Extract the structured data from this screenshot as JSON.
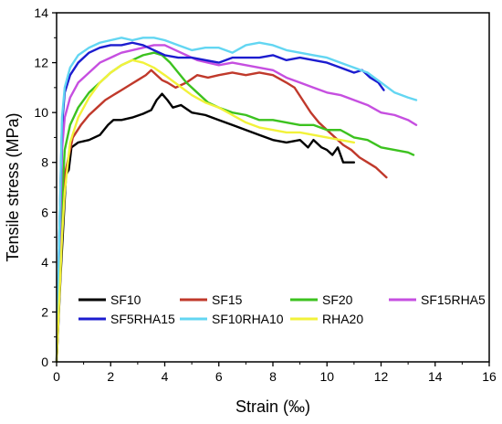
{
  "chart_data": {
    "type": "line",
    "xlabel": "Strain (‰)",
    "ylabel": "Tensile stress (MPa)",
    "xlim": [
      0,
      16
    ],
    "ylim": [
      0,
      14
    ],
    "xticks": [
      "0",
      "2",
      "4",
      "6",
      "8",
      "10",
      "12",
      "14",
      "16"
    ],
    "yticks": [
      "0",
      "2",
      "4",
      "6",
      "8",
      "10",
      "12",
      "14"
    ],
    "grid": false,
    "legend_position": "bottom-left",
    "series": [
      {
        "name": "SF10",
        "color": "#000000",
        "x": [
          0,
          0.15,
          0.3,
          0.35,
          0.45,
          0.55,
          0.8,
          1.2,
          1.6,
          1.9,
          2.1,
          2.4,
          2.8,
          3.2,
          3.5,
          3.7,
          3.9,
          4.1,
          4.3,
          4.6,
          5.0,
          5.5,
          6.0,
          6.5,
          7.0,
          7.5,
          8.0,
          8.5,
          9.0,
          9.3,
          9.5,
          9.8,
          10.0,
          10.2,
          10.4,
          10.6,
          10.8,
          11.0
        ],
        "y": [
          0,
          3.5,
          6.5,
          7.5,
          7.7,
          8.6,
          8.8,
          8.9,
          9.1,
          9.5,
          9.7,
          9.7,
          9.8,
          9.95,
          10.1,
          10.5,
          10.75,
          10.5,
          10.2,
          10.3,
          10.0,
          9.9,
          9.7,
          9.5,
          9.3,
          9.1,
          8.9,
          8.8,
          8.9,
          8.6,
          8.9,
          8.6,
          8.5,
          8.3,
          8.6,
          8.0,
          8.0,
          8.0
        ]
      },
      {
        "name": "SF15",
        "color": "#c0392b",
        "x": [
          0,
          0.15,
          0.3,
          0.4,
          0.6,
          0.9,
          1.2,
          1.5,
          1.8,
          2.1,
          2.4,
          2.7,
          3.0,
          3.3,
          3.5,
          3.7,
          3.9,
          4.1,
          4.4,
          4.8,
          5.2,
          5.6,
          6.0,
          6.5,
          7.0,
          7.5,
          8.0,
          8.5,
          8.8,
          9.1,
          9.4,
          9.7,
          10.0,
          10.3,
          10.6,
          10.9,
          11.2,
          11.5,
          11.8,
          12.0,
          12.2
        ],
        "y": [
          0,
          4.0,
          7.5,
          8.0,
          9.0,
          9.5,
          9.9,
          10.2,
          10.5,
          10.7,
          10.9,
          11.1,
          11.3,
          11.5,
          11.7,
          11.5,
          11.3,
          11.2,
          11.0,
          11.2,
          11.5,
          11.4,
          11.5,
          11.6,
          11.5,
          11.6,
          11.5,
          11.2,
          11.0,
          10.5,
          10.0,
          9.6,
          9.3,
          9.0,
          8.7,
          8.5,
          8.2,
          8.0,
          7.8,
          7.6,
          7.4
        ]
      },
      {
        "name": "SF20",
        "color": "#3cc21f",
        "x": [
          0,
          0.1,
          0.2,
          0.3,
          0.5,
          0.8,
          1.2,
          1.6,
          2.0,
          2.4,
          2.8,
          3.2,
          3.6,
          3.9,
          4.2,
          4.5,
          4.8,
          5.2,
          5.6,
          6.0,
          6.5,
          7.0,
          7.5,
          8.0,
          8.5,
          9.0,
          9.5,
          10.0,
          10.5,
          11.0,
          11.5,
          12.0,
          12.5,
          13.0,
          13.2
        ],
        "y": [
          0,
          3.0,
          6.5,
          8.5,
          9.5,
          10.2,
          10.8,
          11.2,
          11.6,
          11.9,
          12.1,
          12.3,
          12.4,
          12.3,
          12.0,
          11.6,
          11.2,
          10.8,
          10.4,
          10.2,
          10.0,
          9.9,
          9.7,
          9.7,
          9.6,
          9.5,
          9.5,
          9.3,
          9.3,
          9.0,
          8.9,
          8.6,
          8.5,
          8.4,
          8.3
        ]
      },
      {
        "name": "SF15RHA5",
        "color": "#c64fe0",
        "x": [
          0,
          0.1,
          0.2,
          0.3,
          0.5,
          0.8,
          1.2,
          1.6,
          2.0,
          2.4,
          2.8,
          3.2,
          3.6,
          4.0,
          4.4,
          4.8,
          5.2,
          5.6,
          6.0,
          6.5,
          7.0,
          7.5,
          8.0,
          8.5,
          9.0,
          9.5,
          10.0,
          10.5,
          11.0,
          11.5,
          12.0,
          12.5,
          13.0,
          13.3
        ],
        "y": [
          0,
          4.0,
          8.5,
          9.8,
          10.6,
          11.2,
          11.6,
          12.0,
          12.2,
          12.4,
          12.5,
          12.6,
          12.7,
          12.7,
          12.5,
          12.3,
          12.1,
          12.0,
          11.9,
          12.0,
          11.9,
          11.8,
          11.7,
          11.4,
          11.2,
          11.0,
          10.8,
          10.7,
          10.5,
          10.3,
          10.0,
          9.9,
          9.7,
          9.5
        ]
      },
      {
        "name": "SF5RHA15",
        "color": "#1c1ccf",
        "x": [
          0,
          0.1,
          0.2,
          0.3,
          0.5,
          0.8,
          1.2,
          1.6,
          2.0,
          2.4,
          2.8,
          3.2,
          3.6,
          4.0,
          4.5,
          5.0,
          5.5,
          6.0,
          6.5,
          7.0,
          7.5,
          8.0,
          8.5,
          9.0,
          9.5,
          10.0,
          10.5,
          11.0,
          11.3,
          11.6,
          11.9,
          12.1
        ],
        "y": [
          0,
          5.0,
          9.5,
          10.8,
          11.5,
          12.0,
          12.4,
          12.6,
          12.7,
          12.7,
          12.8,
          12.7,
          12.5,
          12.3,
          12.2,
          12.2,
          12.1,
          12.0,
          12.2,
          12.2,
          12.2,
          12.3,
          12.1,
          12.2,
          12.1,
          12.0,
          11.8,
          11.6,
          11.7,
          11.4,
          11.2,
          10.9
        ]
      },
      {
        "name": "SF10RHA10",
        "color": "#63d6f2",
        "x": [
          0,
          0.1,
          0.2,
          0.3,
          0.5,
          0.8,
          1.2,
          1.6,
          2.0,
          2.4,
          2.8,
          3.2,
          3.6,
          4.0,
          4.5,
          5.0,
          5.5,
          6.0,
          6.5,
          7.0,
          7.5,
          8.0,
          8.5,
          9.0,
          9.5,
          10.0,
          10.5,
          11.0,
          11.5,
          12.0,
          12.5,
          13.0,
          13.3
        ],
        "y": [
          0,
          5.0,
          9.8,
          11.0,
          11.8,
          12.3,
          12.6,
          12.8,
          12.9,
          13.0,
          12.9,
          13.0,
          13.0,
          12.9,
          12.7,
          12.5,
          12.6,
          12.6,
          12.4,
          12.7,
          12.8,
          12.7,
          12.5,
          12.4,
          12.3,
          12.2,
          12.0,
          11.8,
          11.6,
          11.2,
          10.8,
          10.6,
          10.5
        ]
      },
      {
        "name": "RHA20",
        "color": "#f2f23a",
        "x": [
          0,
          0.1,
          0.2,
          0.3,
          0.5,
          0.8,
          1.2,
          1.6,
          2.0,
          2.4,
          2.8,
          3.2,
          3.6,
          4.0,
          4.5,
          5.0,
          5.5,
          6.0,
          6.5,
          7.0,
          7.5,
          8.0,
          8.5,
          9.0,
          9.5,
          10.0,
          10.5,
          11.0
        ],
        "y": [
          0,
          2.5,
          5.0,
          6.8,
          8.8,
          9.8,
          10.6,
          11.2,
          11.6,
          11.9,
          12.1,
          12.0,
          11.8,
          11.5,
          11.1,
          10.7,
          10.4,
          10.2,
          9.9,
          9.6,
          9.4,
          9.3,
          9.2,
          9.2,
          9.1,
          9.0,
          8.9,
          8.8
        ]
      }
    ]
  }
}
